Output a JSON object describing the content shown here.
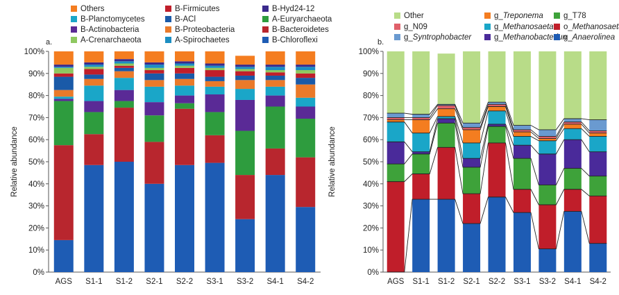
{
  "chart_data": [
    {
      "type": "bar",
      "stacked": true,
      "panel_label": "a.",
      "title": "",
      "xlabel": "",
      "ylabel": "Relative abundance",
      "ylim": [
        0,
        100
      ],
      "y_ticks": [
        "0%",
        "10%",
        "20%",
        "30%",
        "40%",
        "50%",
        "60%",
        "70%",
        "80%",
        "90%",
        "100%"
      ],
      "categories": [
        "AGS",
        "S1-1",
        "S1-2",
        "S2-1",
        "S2-2",
        "S3-1",
        "S3-2",
        "S4-1",
        "S4-2"
      ],
      "legend": [
        {
          "name": "Others",
          "color": "#f47d20"
        },
        {
          "name": "B-Firmicutes",
          "color": "#c01e2a"
        },
        {
          "name": "B-Hyd24-12",
          "color": "#3a2a8c"
        },
        {
          "name": "B-Planctomycetes",
          "color": "#1aa6c8"
        },
        {
          "name": "B-ACl",
          "color": "#1a5aa8"
        },
        {
          "name": "A-Euryarchaeota",
          "color": "#2e9c3e"
        },
        {
          "name": "B-Actinobacteria",
          "color": "#5a2a96"
        },
        {
          "name": "B-Proteobacteria",
          "color": "#ea7a2a"
        },
        {
          "name": "B-Bacteroidetes",
          "color": "#b8262e"
        },
        {
          "name": "A-Crenarchaeota",
          "color": "#8ec860"
        },
        {
          "name": "A-Spirochaetes",
          "color": "#1c8ec2"
        },
        {
          "name": "B-Chloroflexi",
          "color": "#1e5cb4"
        }
      ],
      "series": [
        {
          "name": "B-Chloroflexi",
          "color": "#1e5cb4",
          "values": [
            14.5,
            48.5,
            50,
            40,
            48.5,
            49.5,
            24,
            44,
            29.5
          ]
        },
        {
          "name": "B-Bacteroidetes",
          "color": "#b8262e",
          "values": [
            43,
            14,
            24.5,
            19,
            25.5,
            12.5,
            20,
            12,
            22.5
          ]
        },
        {
          "name": "A-Euryarchaeota",
          "color": "#2e9c3e",
          "values": [
            20,
            10,
            3,
            12,
            2.5,
            10.5,
            20,
            19,
            17.5
          ]
        },
        {
          "name": "B-Actinobacteria",
          "color": "#5a2a96",
          "values": [
            1,
            5,
            5,
            6,
            3.5,
            8,
            14,
            5,
            5.5
          ]
        },
        {
          "name": "B-Planctomycetes",
          "color": "#1aa6c8",
          "values": [
            1,
            7,
            5.5,
            7,
            4.5,
            3.5,
            5,
            4,
            4
          ]
        },
        {
          "name": "B-Proteobacteria",
          "color": "#ea7a2a",
          "values": [
            3,
            3,
            3,
            3,
            3,
            2.5,
            4,
            3,
            6
          ]
        },
        {
          "name": "B-ACl",
          "color": "#1a5aa8",
          "values": [
            6,
            2,
            1.5,
            3,
            2.5,
            2,
            2,
            2,
            3
          ]
        },
        {
          "name": "B-Firmicutes",
          "color": "#c01e2a",
          "values": [
            1.5,
            2.5,
            1,
            1.5,
            2.5,
            3,
            2,
            1.5,
            2
          ]
        },
        {
          "name": "A-Crenarchaeota",
          "color": "#8ec860",
          "values": [
            2.5,
            1,
            1,
            1,
            1,
            1,
            1,
            1,
            1.5
          ]
        },
        {
          "name": "A-Spirochaetes",
          "color": "#1c8ec2",
          "values": [
            0.5,
            1,
            1,
            1.5,
            1,
            1,
            1,
            1.5,
            1.5
          ]
        },
        {
          "name": "B-Hyd24-12",
          "color": "#3a2a8c",
          "values": [
            1,
            1,
            1,
            1,
            1,
            1,
            1,
            1,
            1
          ]
        },
        {
          "name": "Others",
          "color": "#f47d20",
          "values": [
            6,
            5,
            3.5,
            5,
            4.5,
            5.5,
            4,
            6,
            6
          ]
        }
      ]
    },
    {
      "type": "bar",
      "stacked": true,
      "connectors": true,
      "panel_label": "b.",
      "title": "",
      "xlabel": "",
      "ylabel": "Relative abundance",
      "ylim": [
        0,
        100
      ],
      "y_ticks": [
        "0%",
        "10%",
        "20%",
        "30%",
        "40%",
        "50%",
        "60%",
        "70%",
        "80%",
        "90%",
        "100%"
      ],
      "categories": [
        "AGS",
        "S1-1",
        "S1-2",
        "S2-1",
        "S2-2",
        "S3-1",
        "S3-2",
        "S4-1",
        "S4-2"
      ],
      "legend": [
        {
          "name": "Other",
          "color": "#b8dc88"
        },
        {
          "name": "g_Treponema",
          "prefix": "g_",
          "name_italic": "Treponema",
          "color": "#f47d20"
        },
        {
          "name": "g_T78",
          "color": "#3ea23a"
        },
        {
          "name": "g_N09",
          "color": "#e0606a"
        },
        {
          "name": "g_Methanosaeta",
          "prefix": "g_",
          "name_italic": "Methanosaeta",
          "color": "#1aa6c8"
        },
        {
          "name": "o_Methanosaeta",
          "prefix": "o_",
          "name_italic": "Methanosaeta",
          "color": "#c01e2a"
        },
        {
          "name": "g_Syntrophobacter",
          "prefix": "g_",
          "name_italic": "Syntrophobacter",
          "color": "#6a9ad0"
        },
        {
          "name": "g_Methanobacteriun",
          "prefix": "g_",
          "name_italic": "Methanobacteriun",
          "color": "#4a2a9a"
        },
        {
          "name": "g_Anaerolinea",
          "prefix": "g_",
          "name_italic": "Anaerolinea",
          "color": "#1e5cb4"
        }
      ],
      "series": [
        {
          "name": "g_Anaerolinea",
          "color": "#1e5cb4",
          "values": [
            0,
            33,
            33,
            22,
            34,
            27,
            10.5,
            27.5,
            13
          ]
        },
        {
          "name": "o_Methanosaeta",
          "color": "#c01e2a",
          "values": [
            41,
            11.5,
            23.5,
            13.5,
            24.5,
            10.5,
            20,
            10,
            21.5
          ]
        },
        {
          "name": "g_T78",
          "color": "#3ea23a",
          "values": [
            8,
            9,
            11,
            12,
            7.5,
            14,
            9,
            9.5,
            9
          ]
        },
        {
          "name": "g_Methanobacteriun",
          "color": "#4a2a9a",
          "values": [
            10,
            1,
            2,
            4,
            1,
            6,
            14,
            13,
            11
          ]
        },
        {
          "name": "g_Methanosaeta",
          "color": "#1aa6c8",
          "values": [
            9,
            8.5,
            1,
            7,
            6,
            4,
            6,
            5,
            7
          ]
        },
        {
          "name": "g_Treponema",
          "color": "#f47d20",
          "values": [
            1,
            6,
            3.5,
            6,
            2,
            2,
            1,
            2,
            1.5
          ]
        },
        {
          "name": "g_N09",
          "color": "#e0606a",
          "values": [
            1,
            1,
            1.5,
            1,
            1,
            1,
            1,
            1,
            1
          ]
        },
        {
          "name": "g_Syntrophobacter",
          "color": "#6a9ad0",
          "values": [
            2,
            1.5,
            0.5,
            2,
            1,
            2,
            3,
            1.5,
            5
          ]
        },
        {
          "name": "Other",
          "color": "#b8dc88",
          "values": [
            28,
            28.5,
            23,
            32.5,
            23,
            33.5,
            35.5,
            30.5,
            31
          ]
        }
      ],
      "connector_lines_at_boundaries": true
    }
  ]
}
